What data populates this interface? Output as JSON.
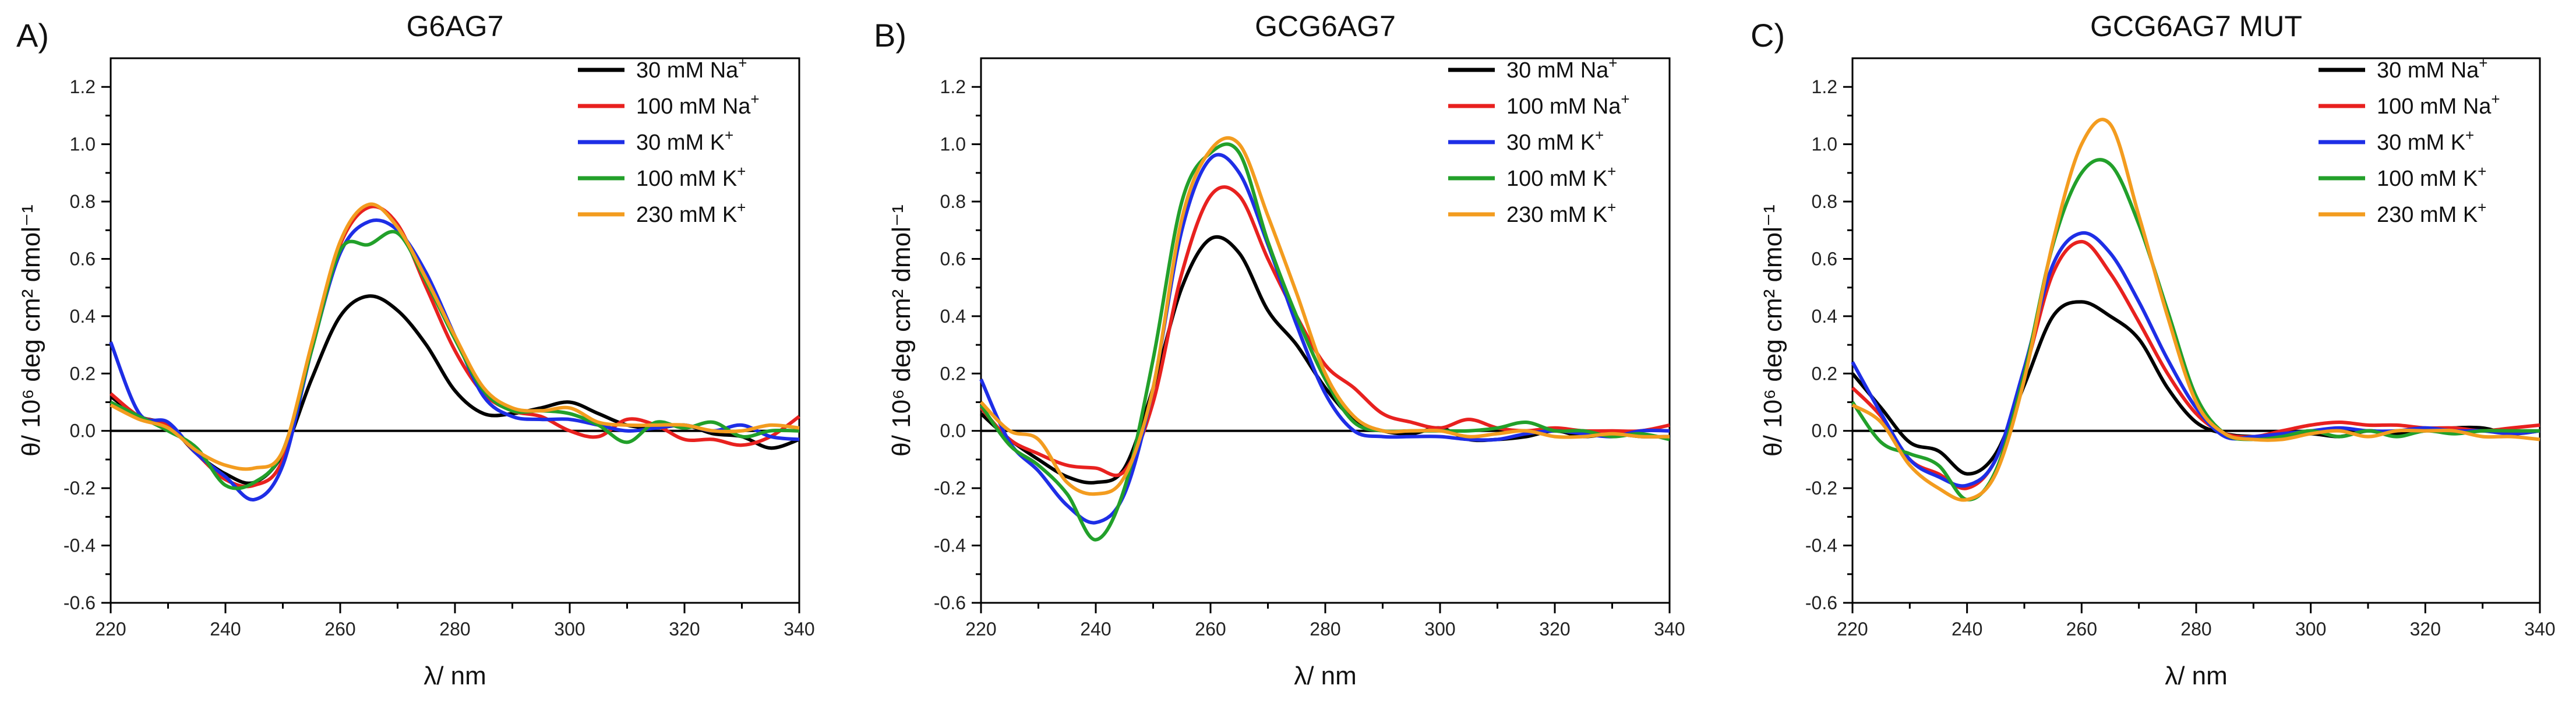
{
  "chart_data": [
    {
      "type": "line",
      "panel_label": "A)",
      "title": "G6AG7",
      "xlabel": "λ/ nm",
      "ylabel": "θ/ 10⁶ deg cm² dmol⁻¹",
      "xlim": [
        220,
        340
      ],
      "ylim": [
        -0.6,
        1.3
      ],
      "xticks": [
        220,
        240,
        260,
        280,
        300,
        320,
        340
      ],
      "xtick_labels": [
        "220",
        "240",
        "260",
        "280",
        "300",
        "320",
        "340"
      ],
      "yticks": [
        -0.6,
        -0.4,
        -0.2,
        0.0,
        0.2,
        0.4,
        0.6,
        0.8,
        1.0,
        1.2
      ],
      "ytick_labels": [
        "-0.6",
        "-0.4",
        "-0.2",
        "0.0",
        "0.2",
        "0.4",
        "0.6",
        "0.8",
        "1.0",
        "1.2"
      ],
      "legend_position": "top-right",
      "series": [
        {
          "name": "30 mM Na",
          "sup": "+",
          "color": "#000000",
          "x": [
            220,
            225,
            230,
            235,
            240,
            245,
            250,
            255,
            260,
            265,
            270,
            275,
            280,
            285,
            290,
            295,
            300,
            305,
            310,
            315,
            320,
            325,
            330,
            335,
            340
          ],
          "y": [
            0.12,
            0.05,
            0.02,
            -0.08,
            -0.15,
            -0.18,
            -0.08,
            0.18,
            0.4,
            0.47,
            0.42,
            0.3,
            0.14,
            0.06,
            0.06,
            0.08,
            0.1,
            0.06,
            0.02,
            0.01,
            0.02,
            -0.01,
            -0.02,
            -0.06,
            -0.03
          ]
        },
        {
          "name": "100 mM Na",
          "sup": "+",
          "color": "#e8211f",
          "x": [
            220,
            225,
            230,
            235,
            240,
            245,
            250,
            255,
            260,
            265,
            270,
            275,
            280,
            285,
            290,
            295,
            300,
            305,
            310,
            315,
            320,
            325,
            330,
            335,
            340
          ],
          "y": [
            0.13,
            0.05,
            0.02,
            -0.08,
            -0.17,
            -0.19,
            -0.1,
            0.3,
            0.65,
            0.78,
            0.72,
            0.5,
            0.28,
            0.13,
            0.07,
            0.05,
            0.0,
            -0.02,
            0.04,
            0.02,
            -0.03,
            -0.03,
            -0.05,
            -0.02,
            0.05
          ]
        },
        {
          "name": "30 mM K",
          "sup": "+",
          "color": "#1e2ee6",
          "x": [
            220,
            225,
            230,
            235,
            240,
            245,
            250,
            255,
            260,
            265,
            270,
            275,
            280,
            285,
            290,
            295,
            300,
            305,
            310,
            315,
            320,
            325,
            330,
            335,
            340
          ],
          "y": [
            0.31,
            0.06,
            0.03,
            -0.08,
            -0.16,
            -0.24,
            -0.12,
            0.28,
            0.62,
            0.73,
            0.7,
            0.55,
            0.33,
            0.12,
            0.05,
            0.04,
            0.04,
            0.02,
            0.0,
            0.01,
            0.02,
            0.0,
            0.02,
            -0.02,
            -0.03
          ]
        },
        {
          "name": "100 mM K",
          "sup": "+",
          "color": "#22a02a",
          "x": [
            220,
            225,
            230,
            235,
            240,
            245,
            250,
            255,
            260,
            265,
            270,
            275,
            280,
            285,
            290,
            295,
            300,
            305,
            310,
            315,
            320,
            325,
            330,
            335,
            340
          ],
          "y": [
            0.1,
            0.05,
            0.0,
            -0.06,
            -0.19,
            -0.18,
            -0.07,
            0.28,
            0.63,
            0.65,
            0.69,
            0.52,
            0.32,
            0.14,
            0.07,
            0.07,
            0.06,
            0.02,
            -0.04,
            0.03,
            0.01,
            0.03,
            -0.02,
            0.0,
            0.0
          ]
        },
        {
          "name": "230 mM K",
          "sup": "+",
          "color": "#f39c1f",
          "x": [
            220,
            225,
            230,
            235,
            240,
            245,
            250,
            255,
            260,
            265,
            270,
            275,
            280,
            285,
            290,
            295,
            300,
            305,
            310,
            315,
            320,
            325,
            330,
            335,
            340
          ],
          "y": [
            0.09,
            0.04,
            0.01,
            -0.07,
            -0.12,
            -0.13,
            -0.07,
            0.3,
            0.66,
            0.79,
            0.71,
            0.53,
            0.33,
            0.15,
            0.08,
            0.07,
            0.08,
            0.03,
            0.02,
            0.02,
            0.02,
            0.0,
            0.0,
            0.02,
            0.01
          ]
        }
      ]
    },
    {
      "type": "line",
      "panel_label": "B)",
      "title": "GCG6AG7",
      "xlabel": "λ/ nm",
      "ylabel": "θ/ 10⁶ deg cm² dmol⁻¹",
      "xlim": [
        220,
        340
      ],
      "ylim": [
        -0.6,
        1.3
      ],
      "xticks": [
        220,
        240,
        260,
        280,
        300,
        320,
        340
      ],
      "xtick_labels": [
        "220",
        "240",
        "260",
        "280",
        "300",
        "320",
        "340"
      ],
      "yticks": [
        -0.6,
        -0.4,
        -0.2,
        0.0,
        0.2,
        0.4,
        0.6,
        0.8,
        1.0,
        1.2
      ],
      "ytick_labels": [
        "-0.6",
        "-0.4",
        "-0.2",
        "0.0",
        "0.2",
        "0.4",
        "0.6",
        "0.8",
        "1.0",
        "1.2"
      ],
      "legend_position": "top-right",
      "series": [
        {
          "name": "30 mM Na",
          "sup": "+",
          "color": "#000000",
          "x": [
            220,
            225,
            230,
            235,
            240,
            245,
            250,
            255,
            260,
            265,
            270,
            275,
            280,
            285,
            290,
            295,
            300,
            305,
            310,
            315,
            320,
            325,
            330,
            335,
            340
          ],
          "y": [
            0.06,
            -0.03,
            -0.1,
            -0.16,
            -0.18,
            -0.13,
            0.15,
            0.5,
            0.67,
            0.62,
            0.42,
            0.3,
            0.15,
            0.04,
            0.0,
            -0.01,
            0.01,
            -0.03,
            -0.03,
            -0.02,
            0.0,
            -0.02,
            -0.01,
            -0.02,
            -0.02
          ]
        },
        {
          "name": "100 mM Na",
          "sup": "+",
          "color": "#e8211f",
          "x": [
            220,
            225,
            230,
            235,
            240,
            245,
            250,
            255,
            260,
            265,
            270,
            275,
            280,
            285,
            290,
            295,
            300,
            305,
            310,
            315,
            320,
            325,
            330,
            335,
            340
          ],
          "y": [
            0.08,
            -0.03,
            -0.08,
            -0.12,
            -0.13,
            -0.14,
            0.1,
            0.55,
            0.82,
            0.82,
            0.6,
            0.4,
            0.23,
            0.15,
            0.06,
            0.03,
            0.01,
            0.04,
            0.01,
            0.0,
            0.01,
            0.0,
            0.0,
            0.0,
            0.02
          ]
        },
        {
          "name": "30 mM K",
          "sup": "+",
          "color": "#1e2ee6",
          "x": [
            220,
            225,
            230,
            235,
            240,
            245,
            250,
            255,
            260,
            265,
            270,
            275,
            280,
            285,
            290,
            295,
            300,
            305,
            310,
            315,
            320,
            325,
            330,
            335,
            340
          ],
          "y": [
            0.18,
            -0.04,
            -0.14,
            -0.26,
            -0.32,
            -0.22,
            0.15,
            0.7,
            0.95,
            0.9,
            0.65,
            0.37,
            0.13,
            0.0,
            -0.02,
            -0.02,
            -0.02,
            -0.03,
            -0.03,
            -0.01,
            0.0,
            -0.01,
            -0.02,
            0.0,
            0.0
          ]
        },
        {
          "name": "100 mM K",
          "sup": "+",
          "color": "#22a02a",
          "x": [
            220,
            225,
            230,
            235,
            240,
            245,
            250,
            255,
            260,
            265,
            270,
            275,
            280,
            285,
            290,
            295,
            300,
            305,
            310,
            315,
            320,
            325,
            330,
            335,
            340
          ],
          "y": [
            0.09,
            -0.05,
            -0.12,
            -0.22,
            -0.38,
            -0.2,
            0.25,
            0.8,
            0.97,
            0.97,
            0.66,
            0.4,
            0.18,
            0.03,
            0.0,
            0.0,
            0.0,
            0.0,
            0.01,
            0.03,
            0.0,
            0.0,
            -0.02,
            -0.01,
            -0.03
          ]
        },
        {
          "name": "230 mM K",
          "sup": "+",
          "color": "#f39c1f",
          "x": [
            220,
            225,
            230,
            235,
            240,
            245,
            250,
            255,
            260,
            265,
            270,
            275,
            280,
            285,
            290,
            295,
            300,
            305,
            310,
            315,
            320,
            325,
            330,
            335,
            340
          ],
          "y": [
            0.1,
            0.0,
            -0.03,
            -0.18,
            -0.22,
            -0.16,
            0.15,
            0.74,
            0.98,
            1.0,
            0.75,
            0.48,
            0.2,
            0.05,
            0.0,
            0.0,
            0.0,
            -0.02,
            -0.01,
            0.0,
            -0.02,
            -0.02,
            -0.01,
            -0.02,
            -0.02
          ]
        }
      ]
    },
    {
      "type": "line",
      "panel_label": "C)",
      "title": "GCG6AG7 MUT",
      "xlabel": "λ/ nm",
      "ylabel": "θ/ 10⁶ deg cm² dmol⁻¹",
      "xlim": [
        220,
        340
      ],
      "ylim": [
        -0.6,
        1.3
      ],
      "xticks": [
        220,
        240,
        260,
        280,
        300,
        320,
        340
      ],
      "xtick_labels": [
        "220",
        "240",
        "260",
        "280",
        "300",
        "320",
        "340"
      ],
      "yticks": [
        -0.6,
        -0.4,
        -0.2,
        0.0,
        0.2,
        0.4,
        0.6,
        0.8,
        1.0,
        1.2
      ],
      "ytick_labels": [
        "-0.6",
        "-0.4",
        "-0.2",
        "0.0",
        "0.2",
        "0.4",
        "0.6",
        "0.8",
        "1.0",
        "1.2"
      ],
      "legend_position": "top-right",
      "series": [
        {
          "name": "30 mM Na",
          "sup": "+",
          "color": "#000000",
          "x": [
            220,
            225,
            230,
            235,
            240,
            245,
            250,
            255,
            260,
            265,
            270,
            275,
            280,
            285,
            290,
            295,
            300,
            305,
            310,
            315,
            320,
            325,
            330,
            335,
            340
          ],
          "y": [
            0.2,
            0.08,
            -0.04,
            -0.07,
            -0.15,
            -0.08,
            0.16,
            0.4,
            0.45,
            0.4,
            0.32,
            0.15,
            0.03,
            -0.01,
            -0.02,
            -0.02,
            -0.01,
            -0.02,
            0.0,
            -0.01,
            0.0,
            0.01,
            0.01,
            -0.01,
            0.0
          ]
        },
        {
          "name": "100 mM Na",
          "sup": "+",
          "color": "#e8211f",
          "x": [
            220,
            225,
            230,
            235,
            240,
            245,
            250,
            255,
            260,
            265,
            270,
            275,
            280,
            285,
            290,
            295,
            300,
            305,
            310,
            315,
            320,
            325,
            330,
            335,
            340
          ],
          "y": [
            0.15,
            0.05,
            -0.1,
            -0.15,
            -0.2,
            -0.1,
            0.2,
            0.55,
            0.66,
            0.55,
            0.38,
            0.2,
            0.06,
            -0.01,
            -0.02,
            0.0,
            0.02,
            0.03,
            0.02,
            0.02,
            0.01,
            0.01,
            0.0,
            0.01,
            0.02
          ]
        },
        {
          "name": "30 mM K",
          "sup": "+",
          "color": "#1e2ee6",
          "x": [
            220,
            225,
            230,
            235,
            240,
            245,
            250,
            255,
            260,
            265,
            270,
            275,
            280,
            285,
            290,
            295,
            300,
            305,
            310,
            315,
            320,
            325,
            330,
            335,
            340
          ],
          "y": [
            0.24,
            0.06,
            -0.1,
            -0.16,
            -0.19,
            -0.1,
            0.22,
            0.58,
            0.69,
            0.62,
            0.45,
            0.25,
            0.08,
            -0.02,
            -0.02,
            -0.01,
            0.0,
            0.01,
            0.0,
            0.0,
            0.01,
            0.0,
            0.0,
            -0.01,
            0.0
          ]
        },
        {
          "name": "100 mM K",
          "sup": "+",
          "color": "#22a02a",
          "x": [
            220,
            225,
            230,
            235,
            240,
            245,
            250,
            255,
            260,
            265,
            270,
            275,
            280,
            285,
            290,
            295,
            300,
            305,
            310,
            315,
            320,
            325,
            330,
            335,
            340
          ],
          "y": [
            0.1,
            -0.04,
            -0.08,
            -0.12,
            -0.24,
            -0.14,
            0.2,
            0.65,
            0.9,
            0.93,
            0.72,
            0.42,
            0.12,
            -0.01,
            -0.03,
            -0.02,
            0.0,
            -0.02,
            0.0,
            -0.02,
            0.0,
            -0.01,
            0.0,
            0.0,
            0.0
          ]
        },
        {
          "name": "230 mM K",
          "sup": "+",
          "color": "#f39c1f",
          "x": [
            220,
            225,
            230,
            235,
            240,
            245,
            250,
            255,
            260,
            265,
            270,
            275,
            280,
            285,
            290,
            295,
            300,
            305,
            310,
            315,
            320,
            325,
            330,
            335,
            340
          ],
          "y": [
            0.09,
            0.03,
            -0.12,
            -0.2,
            -0.24,
            -0.15,
            0.18,
            0.66,
            1.0,
            1.07,
            0.75,
            0.4,
            0.1,
            -0.01,
            -0.03,
            -0.03,
            -0.01,
            0.0,
            -0.02,
            0.0,
            0.0,
            0.0,
            -0.02,
            -0.02,
            -0.03
          ]
        }
      ]
    }
  ]
}
